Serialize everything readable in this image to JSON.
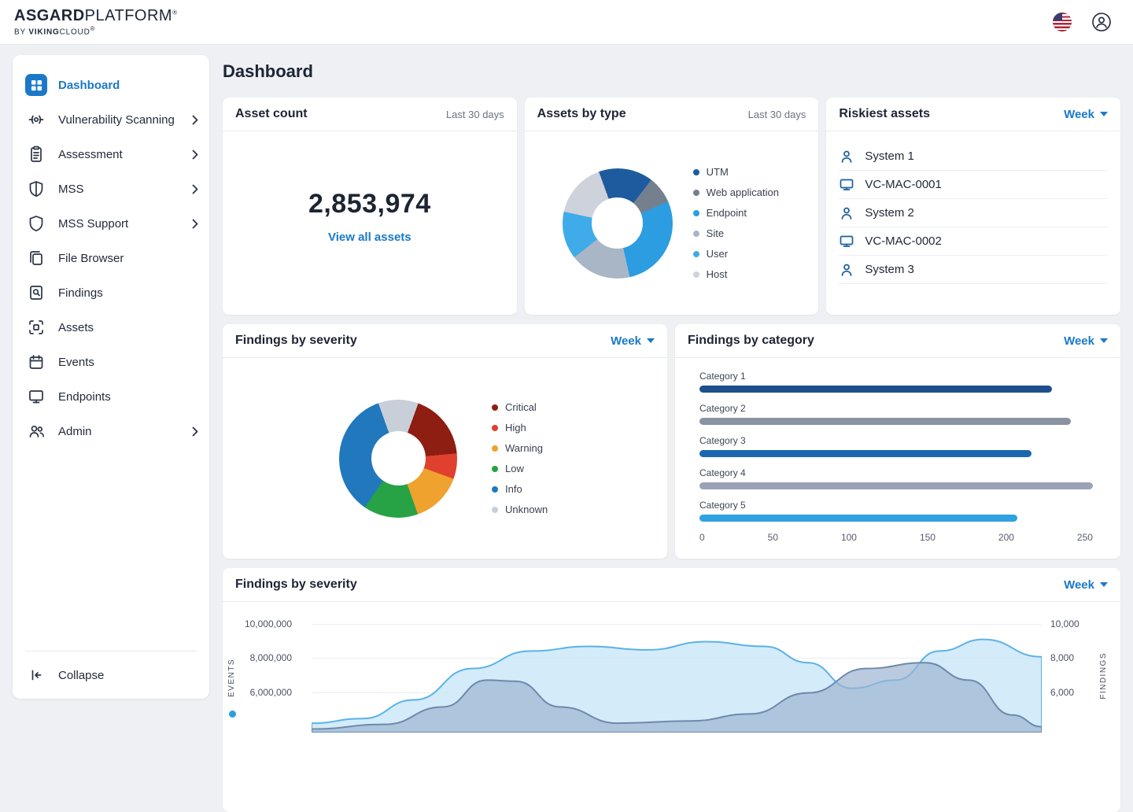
{
  "header": {
    "brand": {
      "name_bold": "ASGARD",
      "name_light": "PLATFORM",
      "name_reg": "®",
      "byline_pre": "BY ",
      "byline_bold": "VIKING",
      "byline_light": "CLOUD",
      "byline_reg": "®"
    }
  },
  "sidebar": {
    "items": [
      {
        "label": "Dashboard",
        "active": true,
        "expandable": false
      },
      {
        "label": "Vulnerability Scanning",
        "active": false,
        "expandable": true
      },
      {
        "label": "Assessment",
        "active": false,
        "expandable": true
      },
      {
        "label": "MSS",
        "active": false,
        "expandable": true
      },
      {
        "label": "MSS Support",
        "active": false,
        "expandable": true
      },
      {
        "label": "File Browser",
        "active": false,
        "expandable": false
      },
      {
        "label": "Findings",
        "active": false,
        "expandable": false
      },
      {
        "label": "Assets",
        "active": false,
        "expandable": false
      },
      {
        "label": "Events",
        "active": false,
        "expandable": false
      },
      {
        "label": "Endpoints",
        "active": false,
        "expandable": false
      },
      {
        "label": "Admin",
        "active": false,
        "expandable": true
      }
    ],
    "collapse_label": "Collapse"
  },
  "page_title": "Dashboard",
  "asset_count": {
    "title": "Asset count",
    "period": "Last 30 days",
    "value": "2,853,974",
    "link_label": "View all assets"
  },
  "assets_by_type": {
    "title": "Assets by type",
    "period": "Last 30 days"
  },
  "riskiest_assets": {
    "title": "Riskiest assets",
    "period": "Week",
    "items": [
      {
        "label": "System 1",
        "icon": "user"
      },
      {
        "label": "VC-MAC-0001",
        "icon": "monitor"
      },
      {
        "label": "System 2",
        "icon": "user"
      },
      {
        "label": "VC-MAC-0002",
        "icon": "monitor"
      },
      {
        "label": "System 3",
        "icon": "user"
      }
    ]
  },
  "findings_by_severity": {
    "title": "Findings by severity",
    "period": "Week"
  },
  "findings_by_category": {
    "title": "Findings by category",
    "period": "Week"
  },
  "findings_timeline": {
    "title": "Findings by severity",
    "period": "Week"
  },
  "chart_data": [
    {
      "type": "pie",
      "variant": "donut",
      "title": "Assets by type",
      "period": "Last 30 days",
      "rotation": -20,
      "slices": [
        {
          "label": "UTM",
          "value": 16,
          "color": "#1e5b9e"
        },
        {
          "label": "Web application",
          "value": 8,
          "color": "#75808f"
        },
        {
          "label": "Endpoint",
          "value": 28,
          "color": "#2b9de0"
        },
        {
          "label": "Site",
          "value": 18,
          "color": "#a9b6c6"
        },
        {
          "label": "User",
          "value": 14,
          "color": "#3fabe8"
        },
        {
          "label": "Host",
          "value": 16,
          "color": "#cdd2db"
        }
      ]
    },
    {
      "type": "pie",
      "variant": "donut",
      "title": "Findings by severity",
      "period": "Week",
      "rotation": 20,
      "slices": [
        {
          "label": "Critical",
          "value": 18,
          "color": "#8e1d12"
        },
        {
          "label": "High",
          "value": 7,
          "color": "#e0402e"
        },
        {
          "label": "Warning",
          "value": 14,
          "color": "#efa22d"
        },
        {
          "label": "Low",
          "value": 15,
          "color": "#27a244"
        },
        {
          "label": "Info",
          "value": 35,
          "color": "#2178bd"
        },
        {
          "label": "Unknown",
          "value": 11,
          "color": "#c9cfd9"
        }
      ]
    },
    {
      "type": "bar",
      "orientation": "horizontal",
      "title": "Findings by category",
      "period": "Week",
      "categories": [
        "Category 1",
        "Category 2",
        "Category 3",
        "Category 4",
        "Category 5"
      ],
      "values": [
        224,
        236,
        211,
        250,
        202
      ],
      "colors": [
        "#1d4f8c",
        "#8a93a4",
        "#1b67b2",
        "#9aa3b6",
        "#2ea2e2"
      ],
      "xlim": [
        0,
        250
      ],
      "xticks": [
        "0",
        "50",
        "100",
        "150",
        "200",
        "250"
      ]
    },
    {
      "type": "area",
      "title": "Findings by severity",
      "period": "Week",
      "y_left": {
        "label": "EVENTS",
        "ticks": [
          "10,000,000",
          "8,000,000",
          "6,000,000"
        ]
      },
      "y_right": {
        "label": "FINDINGS",
        "ticks": [
          "10,000",
          "8,000",
          "6,000"
        ]
      },
      "series": [
        {
          "name": "Events",
          "stroke": "#5bb2e6",
          "fill": "#cde8f8",
          "fill_opacity": 0.85,
          "points": [
            [
              0,
              0.92
            ],
            [
              0.07,
              0.88
            ],
            [
              0.14,
              0.72
            ],
            [
              0.22,
              0.45
            ],
            [
              0.3,
              0.3
            ],
            [
              0.38,
              0.26
            ],
            [
              0.46,
              0.29
            ],
            [
              0.54,
              0.22
            ],
            [
              0.62,
              0.26
            ],
            [
              0.68,
              0.4
            ],
            [
              0.74,
              0.62
            ],
            [
              0.8,
              0.55
            ],
            [
              0.86,
              0.3
            ],
            [
              0.92,
              0.2
            ],
            [
              1,
              0.35
            ]
          ]
        },
        {
          "name": "Findings",
          "stroke": "#6d89ac",
          "fill": "#9db5d2",
          "fill_opacity": 0.7,
          "points": [
            [
              0,
              0.97
            ],
            [
              0.1,
              0.93
            ],
            [
              0.18,
              0.78
            ],
            [
              0.24,
              0.55
            ],
            [
              0.28,
              0.56
            ],
            [
              0.34,
              0.78
            ],
            [
              0.42,
              0.92
            ],
            [
              0.52,
              0.9
            ],
            [
              0.6,
              0.84
            ],
            [
              0.68,
              0.66
            ],
            [
              0.76,
              0.45
            ],
            [
              0.84,
              0.4
            ],
            [
              0.9,
              0.55
            ],
            [
              0.96,
              0.85
            ],
            [
              1,
              0.95
            ]
          ]
        }
      ]
    }
  ]
}
